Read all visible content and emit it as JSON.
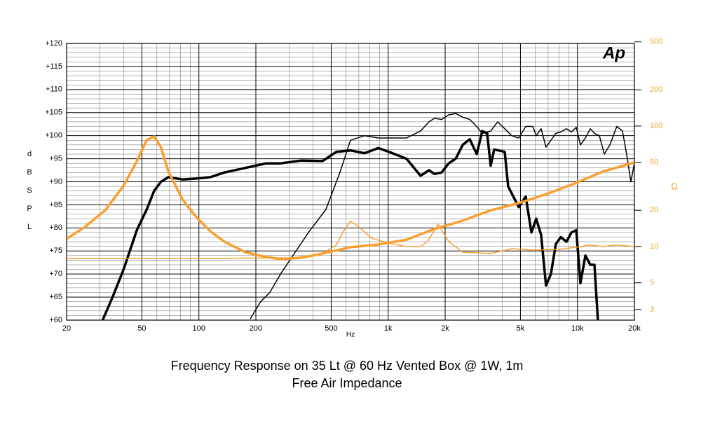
{
  "chart_data": {
    "type": "line",
    "title": "Frequency Response on 35 Lt @ 60 Hz Vented Box @ 1W, 1m",
    "subtitle": "Free Air Impedance",
    "xlabel": "Hz",
    "ylabel": "dB SPL",
    "y2label": "Ω",
    "logo": "Ap",
    "xscale": "log",
    "y2scale": "log",
    "grid": true,
    "xlim": [
      20,
      20000
    ],
    "xticks": [
      20,
      50,
      100,
      200,
      500,
      {
        "value": 1000,
        "label": "1k"
      },
      {
        "value": 2000,
        "label": "2k"
      },
      {
        "value": 5000,
        "label": "5k"
      },
      {
        "value": 10000,
        "label": "10k"
      },
      {
        "value": 20000,
        "label": "20k"
      }
    ],
    "xminor_ticks": [
      30,
      40,
      60,
      70,
      80,
      90,
      300,
      400,
      600,
      700,
      800,
      900,
      3000,
      4000,
      6000,
      7000,
      8000,
      9000
    ],
    "ylim": [
      60,
      120
    ],
    "yticks": [
      {
        "value": 60,
        "label": "+60"
      },
      {
        "value": 65,
        "label": "+65"
      },
      {
        "value": 70,
        "label": "+70"
      },
      {
        "value": 75,
        "label": "+75"
      },
      {
        "value": 80,
        "label": "+80"
      },
      {
        "value": 85,
        "label": "+85"
      },
      {
        "value": 90,
        "label": "+90"
      },
      {
        "value": 95,
        "label": "+95"
      },
      {
        "value": 100,
        "label": "+100"
      },
      {
        "value": 105,
        "label": "+105"
      },
      {
        "value": 110,
        "label": "+110"
      },
      {
        "value": 115,
        "label": "+115"
      },
      {
        "value": 120,
        "label": "+120"
      }
    ],
    "yminor_ticks": [
      61,
      62,
      63,
      64,
      66,
      67,
      68,
      69,
      71,
      72,
      73,
      74,
      76,
      77,
      78,
      79,
      81,
      82,
      83,
      84,
      86,
      87,
      88,
      89,
      91,
      92,
      93,
      94,
      96,
      97,
      98,
      99,
      101,
      102,
      103,
      104,
      106,
      107,
      108,
      109,
      111,
      112,
      113,
      114,
      116,
      117,
      118,
      119
    ],
    "y2lim": [
      2.45,
      485
    ],
    "y2ticks": [
      3,
      5,
      10,
      20,
      50,
      100,
      200,
      500
    ],
    "series": [
      {
        "color": "#000000",
        "width": 3.5,
        "x": [
          31,
          35,
          40,
          47,
          53,
          58,
          63,
          69,
          82,
          97,
          115,
          136,
          176,
          227,
          270,
          348,
          450,
          533,
          632,
          750,
          889,
          1054,
          1250,
          1483,
          1644,
          1759,
          1914,
          2089,
          2275,
          2477,
          2698,
          2938,
          3141,
          3334,
          3483,
          3631,
          4128,
          4305,
          4898,
          5333,
          5715,
          6053,
          6427,
          6823,
          7244,
          7691,
          8166,
          8750,
          9290,
          9863,
          10375,
          11015,
          11695,
          12303,
          12823
        ],
        "values": [
          60,
          65,
          71,
          79.5,
          84,
          88,
          90,
          91,
          90.5,
          90.7,
          91,
          92,
          93,
          94,
          94,
          94.6,
          94.5,
          96.5,
          96.8,
          96.2,
          97.3,
          96.2,
          95,
          91.3,
          92.5,
          91.7,
          92,
          94,
          95,
          98,
          99.2,
          96,
          101,
          100.5,
          93.5,
          97,
          96.5,
          89,
          84.5,
          86.8,
          79,
          82,
          78.5,
          67.5,
          70,
          76.5,
          78,
          77,
          79,
          79.5,
          68,
          74,
          72,
          72,
          60
        ]
      },
      {
        "color": "#000000",
        "width": 1.5,
        "x": [
          187,
          212,
          237,
          270,
          320,
          379,
          469,
          556,
          632,
          750,
          889,
          1054,
          1250,
          1483,
          1644,
          1759,
          1914,
          2089,
          2275,
          2477,
          2698,
          2938,
          3141,
          3483,
          3793,
          4128,
          4498,
          4898,
          5333,
          5808,
          6053,
          6427,
          6823,
          7244,
          7691,
          8166,
          8750,
          9290,
          9863,
          10375,
          11015,
          11695,
          12303,
          13060,
          13868,
          14833,
          16150,
          17300,
          18370,
          19150,
          20000
        ],
        "values": [
          60.3,
          64,
          66,
          70,
          74.5,
          79,
          84,
          92,
          99,
          100,
          99.5,
          99.5,
          99.5,
          101,
          103,
          103.8,
          103.5,
          104.5,
          104.8,
          104,
          103.5,
          102,
          100.5,
          101,
          103,
          101.5,
          100,
          99.5,
          102,
          102,
          100,
          101.5,
          97.5,
          99,
          100.5,
          100.8,
          101.5,
          100.8,
          101.8,
          98,
          99.5,
          101.5,
          100.5,
          100,
          96,
          98,
          102,
          101,
          95,
          90,
          94
        ]
      },
      {
        "color": "#f7a030",
        "width": 3.5,
        "axis": "y2",
        "x": [
          20,
          24.8,
          32,
          40,
          47,
          53,
          58,
          63,
          69,
          82,
          97,
          115,
          136,
          176,
          227,
          270,
          348,
          450,
          632,
          889,
          1250,
          1759,
          2477,
          3483,
          4898,
          6887,
          9683,
          13620,
          20000
        ],
        "values": [
          11.6,
          14.4,
          20,
          32,
          51,
          76.5,
          81.8,
          67,
          41.9,
          24.5,
          17.5,
          13.4,
          11,
          8.98,
          8.18,
          7.86,
          8.07,
          8.75,
          9.87,
          10.4,
          11.4,
          14,
          16.4,
          20,
          22.9,
          27.3,
          33.4,
          41.9,
          49.9
        ]
      },
      {
        "color": "#f7a030",
        "width": 1.5,
        "axis": "y2",
        "x": [
          20,
          115,
          320,
          450,
          533,
          581,
          632,
          689,
          817,
          1054,
          1250,
          1483,
          1615,
          1837,
          2089,
          2477,
          3483,
          4498,
          5808,
          8166,
          10540,
          11490,
          13620,
          16150,
          20000
        ],
        "values": [
          7.97,
          7.97,
          8.07,
          8.75,
          10.3,
          13.4,
          16.2,
          14.9,
          11.7,
          10.5,
          10,
          10,
          11,
          15.3,
          11,
          8.98,
          8.75,
          9.6,
          9.35,
          9.5,
          10,
          10.3,
          10,
          10.3,
          10
        ]
      }
    ]
  }
}
